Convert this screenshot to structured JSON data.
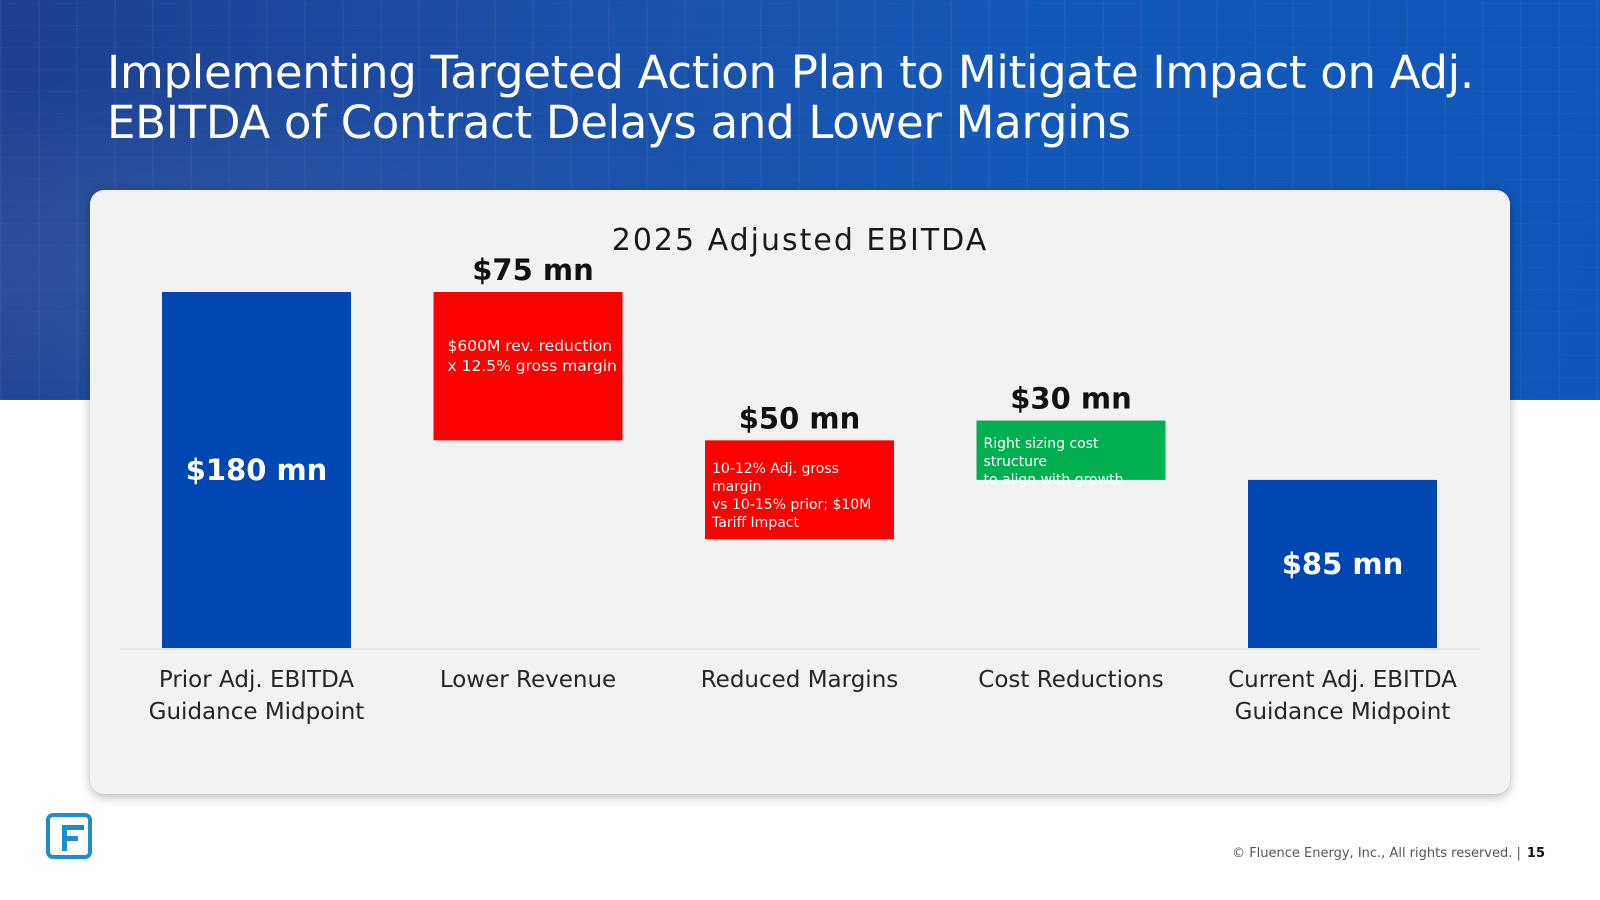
{
  "slide": {
    "title": "Implementing Targeted Action Plan to Mitigate Impact on Adj. EBITDA of Contract Delays and Lower Margins",
    "footer": "© Fluence Energy, Inc., All rights reserved. |",
    "page_number": "15"
  },
  "colors": {
    "hero_blue": "#1558b7",
    "total_bar": "#0047b3",
    "decrease_bar": "#ff0000",
    "increase_bar": "#00b050",
    "card_bg": "#f2f2f2",
    "logo": "#1a8fc9"
  },
  "chart_data": {
    "type": "bar",
    "subtype": "waterfall",
    "title": "2025 Adjusted EBITDA",
    "unit": "$ mn",
    "categories": [
      "Prior Adj. EBITDA Guidance Midpoint",
      "Lower Revenue",
      "Reduced Margins",
      "Cost Reductions",
      "Current Adj. EBITDA Guidance Midpoint"
    ],
    "category_lines": [
      [
        "Prior Adj. EBITDA",
        "Guidance Midpoint"
      ],
      [
        "Lower Revenue"
      ],
      [
        "Reduced Margins"
      ],
      [
        "Cost Reductions"
      ],
      [
        "Current Adj. EBITDA",
        "Guidance Midpoint"
      ]
    ],
    "values": [
      180,
      -75,
      -50,
      30,
      85
    ],
    "kinds": [
      "total",
      "decrease",
      "decrease",
      "increase",
      "total"
    ],
    "value_labels": [
      "$180 mn",
      "$75 mn",
      "$50 mn",
      "$30 mn",
      "$85 mn"
    ],
    "annotations": [
      "",
      "$600M rev. reduction x 12.5% gross margin",
      "10-12% Adj. gross margin vs 10-15% prior; $10M Tariff Impact",
      "Right sizing cost structure to align with growth",
      ""
    ],
    "annotation_lines": [
      [],
      [
        "$600M rev. reduction",
        "x 12.5% gross margin"
      ],
      [
        "10-12% Adj. gross margin",
        "vs 10-15% prior; $10M",
        "Tariff Impact"
      ],
      [
        "Right sizing cost structure",
        "to align with growth"
      ],
      []
    ],
    "ylim": [
      0,
      180
    ],
    "grid": false,
    "legend": "none"
  }
}
